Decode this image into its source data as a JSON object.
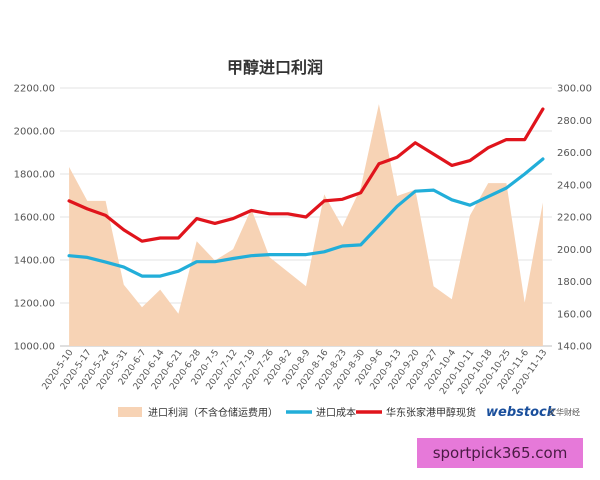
{
  "chart_data": {
    "type": "line",
    "title": "甲醇进口利润",
    "categories": [
      "2020-5-10",
      "2020-5-17",
      "2020-5-24",
      "2020-5-31",
      "2020-6-7",
      "2020-6-14",
      "2020-6-21",
      "2020-6-28",
      "2020-7-5",
      "2020-7-12",
      "2020-7-19",
      "2020-7-26",
      "2020-8-2",
      "2020-8-9",
      "2020-8-16",
      "2020-8-23",
      "2020-8-30",
      "2020-9-6",
      "2020-9-13",
      "2020-9-20",
      "2020-9-27",
      "2020-10-4",
      "2020-10-11",
      "2020-10-18",
      "2020-10-25",
      "2020-11-6",
      "2020-11-13"
    ],
    "y_left": {
      "ylim": [
        1000,
        2200
      ],
      "ticks": [
        "1000.00",
        "1200.00",
        "1400.00",
        "1600.00",
        "1800.00",
        "2000.00",
        "2200.00"
      ]
    },
    "y_right": {
      "ylim": [
        140,
        300
      ],
      "ticks": [
        "140.00",
        "160.00",
        "180.00",
        "200.00",
        "220.00",
        "240.00",
        "260.00",
        "280.00",
        "300.00"
      ]
    },
    "series": [
      {
        "name": "进口利润（不含仓储运费用）",
        "type": "area",
        "axis": "right",
        "color": "#f7d3b5",
        "values": [
          251,
          230,
          230,
          178,
          164,
          175,
          160,
          205,
          193,
          200,
          225,
          195,
          186,
          177,
          234,
          214,
          238,
          290,
          233,
          237,
          177,
          169,
          221,
          241,
          241,
          167,
          229
        ]
      },
      {
        "name": "进口成本",
        "type": "line",
        "axis": "left",
        "color": "#22aed9",
        "values": [
          1420,
          1412,
          1390,
          1367,
          1325,
          1325,
          1348,
          1392,
          1392,
          1407,
          1420,
          1425,
          1425,
          1425,
          1438,
          1465,
          1470,
          1560,
          1650,
          1720,
          1725,
          1680,
          1655,
          1695,
          1735,
          1800,
          1870
        ]
      },
      {
        "name": "华东张家港甲醇现货",
        "type": "line",
        "axis": "right",
        "color": "#e0141c",
        "values": [
          230,
          225,
          221,
          212,
          205,
          207,
          207,
          219,
          216,
          219,
          224,
          222,
          222,
          220,
          230,
          231,
          235,
          253,
          257,
          266,
          259,
          252,
          255,
          263,
          268,
          268,
          287
        ]
      }
    ]
  },
  "logo": {
    "text": "webstock",
    "subtext": "文华财经"
  },
  "watermark": "sportpick365.com"
}
